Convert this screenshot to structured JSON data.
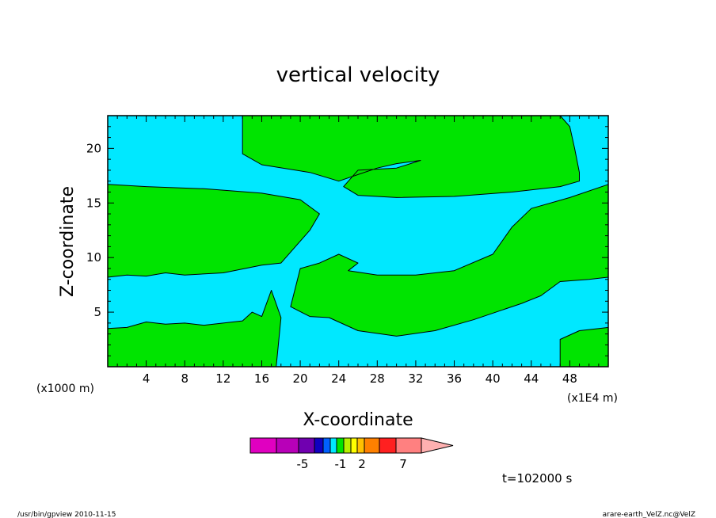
{
  "footer": {
    "left": "/usr/bin/gpview   2010-11-15",
    "right": "arare-earth_VelZ.nc@VelZ"
  },
  "chart_data": {
    "type": "contour",
    "title": "vertical velocity",
    "xlabel": "X-coordinate",
    "ylabel": "Z-coordinate",
    "x_unit_left": "(x1000 m)",
    "x_unit_right": "(x1E4 m)",
    "time_label": "t=102000 s",
    "xlim": [
      0,
      52
    ],
    "ylim": [
      0,
      23
    ],
    "x_ticks": [
      4,
      8,
      12,
      16,
      20,
      24,
      28,
      32,
      36,
      40,
      44,
      48
    ],
    "y_ticks": [
      5,
      10,
      15,
      20
    ],
    "colors": {
      "negative_region": "#00e8ff",
      "positive_region": "#00e400",
      "contour_line": "#000000"
    },
    "colorbar": {
      "colors": [
        "#e000c0",
        "#b800b8",
        "#7000b0",
        "#1000c0",
        "#0060ff",
        "#00e8ff",
        "#00e400",
        "#b8f000",
        "#ffff00",
        "#ffc000",
        "#ff8000",
        "#ff2020",
        "#ff8080",
        "#ffb0b0"
      ],
      "tick_labels": [
        "-5",
        "-1",
        "2",
        "7"
      ]
    },
    "positive_regions": [
      {
        "name": "upper-right-lobe",
        "points": [
          [
            14,
            23
          ],
          [
            14,
            19.5
          ],
          [
            16,
            18.5
          ],
          [
            21,
            17.8
          ],
          [
            24,
            17
          ],
          [
            26,
            17.6
          ],
          [
            28,
            18.2
          ],
          [
            30,
            18.6
          ],
          [
            32.5,
            18.9
          ],
          [
            30,
            18.2
          ],
          [
            26,
            18
          ],
          [
            25,
            17
          ],
          [
            24.5,
            16.5
          ],
          [
            26,
            15.7
          ],
          [
            30,
            15.5
          ],
          [
            36,
            15.6
          ],
          [
            42,
            16
          ],
          [
            47,
            16.5
          ],
          [
            49,
            17
          ],
          [
            49,
            17.8
          ],
          [
            48.5,
            20
          ],
          [
            48,
            22
          ],
          [
            47,
            23
          ]
        ]
      },
      {
        "name": "left-upper-band",
        "points": [
          [
            0,
            16.7
          ],
          [
            4,
            16.5
          ],
          [
            10,
            16.3
          ],
          [
            16,
            15.9
          ],
          [
            20,
            15.3
          ],
          [
            22,
            14
          ],
          [
            21,
            12.5
          ],
          [
            18,
            9.5
          ],
          [
            16,
            9.3
          ],
          [
            12,
            8.6
          ],
          [
            8,
            8.4
          ],
          [
            6,
            8.6
          ],
          [
            4,
            8.3
          ],
          [
            2,
            8.4
          ],
          [
            0,
            8.2
          ]
        ]
      },
      {
        "name": "left-lower-band",
        "points": [
          [
            0,
            3.5
          ],
          [
            2,
            3.6
          ],
          [
            4,
            4.1
          ],
          [
            6,
            3.9
          ],
          [
            8,
            4
          ],
          [
            10,
            3.8
          ],
          [
            12,
            4
          ],
          [
            14,
            4.2
          ],
          [
            15,
            5
          ],
          [
            16,
            4.6
          ],
          [
            17,
            7
          ],
          [
            18,
            4.5
          ],
          [
            17.5,
            0
          ],
          [
            0,
            0
          ]
        ]
      },
      {
        "name": "center-band",
        "points": [
          [
            19,
            5.5
          ],
          [
            20,
            9
          ],
          [
            22,
            9.5
          ],
          [
            24,
            10.3
          ],
          [
            26,
            9.5
          ],
          [
            25,
            8.8
          ],
          [
            28,
            8.4
          ],
          [
            32,
            8.4
          ],
          [
            36,
            8.8
          ],
          [
            40,
            10.3
          ],
          [
            42,
            12.8
          ],
          [
            44,
            14.5
          ],
          [
            48,
            15.5
          ],
          [
            52,
            16.7
          ],
          [
            52,
            8.2
          ],
          [
            50,
            8
          ],
          [
            47,
            7.8
          ],
          [
            45,
            6.5
          ],
          [
            43,
            5.8
          ],
          [
            41,
            5.2
          ],
          [
            38,
            4.3
          ],
          [
            34,
            3.3
          ],
          [
            30,
            2.8
          ],
          [
            26,
            3.3
          ],
          [
            23,
            4.5
          ],
          [
            21,
            4.6
          ]
        ]
      },
      {
        "name": "lower-right-patch",
        "points": [
          [
            47,
            0
          ],
          [
            47,
            2.5
          ],
          [
            49,
            3.3
          ],
          [
            52,
            3.6
          ],
          [
            52,
            0
          ]
        ]
      }
    ]
  }
}
